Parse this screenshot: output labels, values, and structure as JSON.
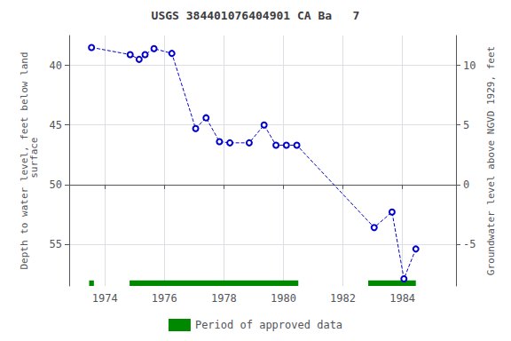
{
  "chart_data": {
    "type": "line",
    "title": "USGS 384401076404901 CA Ba   7",
    "ylabel": "Depth to water level, feet below land\n surface",
    "y2label": "Groundwater level above NGVD 1929, feet",
    "x": [
      1973.55,
      1974.85,
      1975.15,
      1975.35,
      1975.65,
      1976.25,
      1977.05,
      1977.4,
      1977.85,
      1978.2,
      1978.85,
      1979.35,
      1979.75,
      1980.1,
      1980.45,
      1983.05,
      1983.65,
      1984.05,
      1984.45
    ],
    "xlim": [
      1972.8,
      1985.8
    ],
    "xticks": [
      1974,
      1976,
      1978,
      1980,
      1982,
      1984
    ],
    "ylim": [
      58.5,
      37.5
    ],
    "yticks": [
      40,
      45,
      50,
      55
    ],
    "y2lim": [
      -8.5,
      12.5
    ],
    "y2ticks": [
      10,
      5,
      0,
      -5
    ],
    "grid": true,
    "legend": "bottom",
    "series": [
      {
        "values": [
          38.5,
          39.1,
          39.5,
          39.1,
          38.6,
          39.0,
          45.3,
          44.4,
          46.4,
          46.5,
          46.5,
          45.0,
          46.7,
          46.7,
          46.7,
          53.6,
          52.3,
          57.9,
          55.4
        ],
        "color": "#0000cc",
        "line_style": "dashed",
        "marker": "circle"
      },
      {
        "name": "Period of approved data",
        "type": "segments",
        "color": "#008800",
        "segments": [
          [
            1973.47,
            1973.63
          ],
          [
            1974.83,
            1980.5
          ],
          [
            1982.85,
            1984.45
          ]
        ]
      }
    ]
  }
}
